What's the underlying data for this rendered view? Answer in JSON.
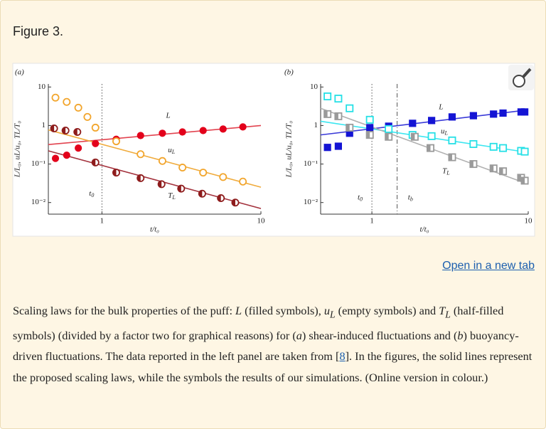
{
  "header": {
    "title": "Figure 3."
  },
  "chart_data": [
    {
      "type": "scatter",
      "panel": "(a)",
      "xlabel": "t/t₀",
      "ylabel": "L/L₀, uL/u₀, TL/T₀",
      "log_x": true,
      "log_y": true,
      "xlim": [
        0.46,
        10
      ],
      "ylim": [
        0.005,
        12
      ],
      "xticks": [
        1,
        10
      ],
      "yticks": [
        10,
        1,
        {
          "value": 0.1,
          "label": "10⁻¹"
        },
        {
          "value": 0.01,
          "label": "10⁻²"
        }
      ],
      "marker": "circle",
      "series": [
        {
          "color": "#e3001b",
          "fill": "filled",
          "x": [
            0.51,
            0.6,
            0.71,
            0.91,
            1.23,
            1.75,
            2.4,
            3.21,
            4.33,
            5.78,
            7.7
          ],
          "values": [
            0.14,
            0.17,
            0.26,
            0.34,
            0.44,
            0.55,
            0.63,
            0.68,
            0.74,
            0.81,
            0.92
          ]
        },
        {
          "color": "#f2a52c",
          "fill": "empty",
          "x": [
            0.51,
            0.6,
            0.71,
            0.81,
            0.91,
            1.23,
            1.75,
            2.4,
            3.21,
            4.33,
            5.78,
            7.7
          ],
          "values": [
            5.3,
            4.1,
            2.9,
            1.67,
            0.88,
            0.39,
            0.18,
            0.12,
            0.081,
            0.06,
            0.046,
            0.035
          ]
        },
        {
          "color": "#8e1c1c",
          "fill": "half",
          "x": [
            0.5,
            0.59,
            0.7,
            0.91,
            1.23,
            1.75,
            2.37,
            3.15,
            4.27,
            5.6,
            6.9
          ],
          "values": [
            0.84,
            0.74,
            0.68,
            0.11,
            0.06,
            0.043,
            0.03,
            0.023,
            0.017,
            0.013,
            0.01
          ]
        }
      ],
      "fits": [
        {
          "color": "#e2434f",
          "x": [
            0.46,
            10
          ],
          "values": [
            0.32,
            1
          ]
        },
        {
          "color": "#f0ab3c",
          "x": [
            0.46,
            10
          ],
          "values": [
            0.77,
            0.025
          ]
        },
        {
          "color": "#a3313c",
          "x": [
            0.46,
            10
          ],
          "values": [
            0.22,
            0.007
          ]
        }
      ],
      "vlines": [
        {
          "x": 1,
          "style": "dotted"
        }
      ],
      "annotations": [
        {
          "text": "L",
          "x": 2.53,
          "y": 1.8
        },
        {
          "text": "u",
          "sub": "L",
          "x": 2.6,
          "y": 0.23
        },
        {
          "text": "T",
          "sub": "L",
          "x": 2.6,
          "y": 0.015
        },
        {
          "text": "t",
          "sub": "0",
          "x": 0.83,
          "y": 0.017
        }
      ]
    },
    {
      "type": "scatter",
      "panel": "(b)",
      "xlabel": "t/t₀",
      "ylabel": "L/L₀, uL/u₀, TL/T₀",
      "log_x": true,
      "log_y": true,
      "xlim": [
        0.47,
        10
      ],
      "ylim": [
        0.005,
        12
      ],
      "xticks": [
        1,
        10
      ],
      "yticks": [
        10,
        1,
        {
          "value": 0.1,
          "label": "10⁻¹"
        },
        {
          "value": 0.01,
          "label": "10⁻²"
        }
      ],
      "marker": "square",
      "series": [
        {
          "color": "#1414d4",
          "fill": "filled",
          "x": [
            0.52,
            0.61,
            0.72,
            0.97,
            1.28,
            1.82,
            2.41,
            3.26,
            4.46,
            6.0,
            6.9,
            9.0,
            9.5
          ],
          "values": [
            0.27,
            0.29,
            0.63,
            0.88,
            0.96,
            1.14,
            1.35,
            1.67,
            1.8,
            1.98,
            2.1,
            2.25,
            2.25
          ]
        },
        {
          "color": "#25e0e6",
          "fill": "empty",
          "x": [
            0.52,
            0.61,
            0.72,
            0.97,
            1.28,
            1.82,
            2.41,
            3.26,
            4.46,
            6.0,
            6.9,
            9.0,
            9.5
          ],
          "values": [
            5.7,
            5.0,
            2.8,
            1.41,
            0.81,
            0.57,
            0.53,
            0.41,
            0.33,
            0.28,
            0.26,
            0.22,
            0.21
          ]
        },
        {
          "color": "#9a9a9a",
          "fill": "half",
          "x": [
            0.52,
            0.61,
            0.72,
            0.97,
            1.28,
            1.88,
            2.37,
            3.26,
            4.46,
            6.0,
            6.9,
            9.0,
            9.5
          ],
          "values": [
            1.98,
            1.74,
            0.88,
            0.57,
            0.51,
            0.51,
            0.26,
            0.15,
            0.1,
            0.077,
            0.065,
            0.044,
            0.037
          ]
        }
      ],
      "fits": [
        {
          "color": "#3a3ad8",
          "x": [
            0.47,
            10
          ],
          "values": [
            0.57,
            2.55
          ]
        },
        {
          "color": "#3ce6f0",
          "x": [
            0.47,
            10
          ],
          "values": [
            1.29,
            0.2
          ]
        },
        {
          "color": "#b0b0b0",
          "x": [
            0.47,
            10
          ],
          "values": [
            2.8,
            0.03
          ]
        }
      ],
      "vlines": [
        {
          "x": 1,
          "style": "dotted"
        },
        {
          "x": 1.45,
          "style": "dashdot"
        }
      ],
      "annotations": [
        {
          "text": "L",
          "x": 2.68,
          "y": 3.0
        },
        {
          "text": "u",
          "sub": "L",
          "x": 2.76,
          "y": 0.71
        },
        {
          "text": "T",
          "sub": "L",
          "x": 2.82,
          "y": 0.066
        },
        {
          "text": "t",
          "sub": "0",
          "x": 0.81,
          "y": 0.0135
        },
        {
          "text": "t",
          "sub": "b",
          "x": 1.7,
          "y": 0.0135
        }
      ]
    }
  ],
  "link": "Open in a new tab",
  "caption": [
    "Scaling laws for the bulk properties of the puff: ",
    "L",
    " (filled symbols), ",
    "u",
    "L",
    " (empty symbols) and ",
    "T",
    "L",
    " (half-filled symbols) (divided by a factor two for graphical reasons) for (",
    "a",
    ") shear-induced fluctuations and (",
    "b",
    ") buoyancy-driven fluctuations. The data reported in the left panel are taken from [",
    "8",
    "]. In the figures, the solid lines represent the proposed scaling laws, while the symbols the results of our simulations. (Online version in colour.)"
  ]
}
